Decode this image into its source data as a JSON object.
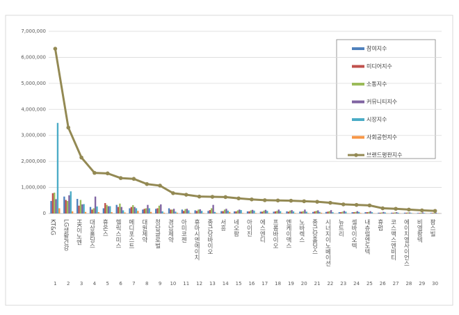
{
  "chart_data": {
    "type": "bar",
    "categories": [
      "KT&G",
      "LG생활건강",
      "HK이노엔",
      "대상홀딩스",
      "휴온스",
      "헬릭스미스",
      "메디포스트",
      "대원제약",
      "청담글로벌",
      "경남제약",
      "아미코젠",
      "휴마시엔에이치",
      "종근당바이오",
      "서흥",
      "네오팜",
      "아이진",
      "에스엔디",
      "프롬바이오",
      "엔케이맥스",
      "노바렉스",
      "종근당홀딩스",
      "시너지이노베이션",
      "뉴트리",
      "셀바이오텍",
      "내츄럴엔도텍",
      "휴럼",
      "코스맥스엔비티",
      "에이치엘사이언스",
      "비엘팜텍",
      "팜스빌"
    ],
    "ranks": [
      1,
      2,
      3,
      4,
      5,
      6,
      7,
      8,
      9,
      10,
      11,
      12,
      13,
      14,
      15,
      16,
      17,
      18,
      19,
      20,
      21,
      22,
      23,
      24,
      25,
      26,
      27,
      28,
      29,
      30
    ],
    "ylim": [
      0,
      7000000
    ],
    "yticks": [
      0,
      {
        "value": 1000000,
        "label": "1,000,000"
      },
      {
        "value": 2000000,
        "label": "2,000,000"
      },
      {
        "value": 3000000,
        "label": "3,000,000"
      },
      {
        "value": 4000000,
        "label": "4,000,000"
      },
      {
        "value": 5000000,
        "label": "5,000,000"
      },
      {
        "value": 6000000,
        "label": "6,000,000"
      },
      {
        "value": 7000000,
        "label": "7,000,000"
      }
    ],
    "grid": true,
    "legend": "upper right",
    "series": [
      {
        "name": "참여지수",
        "color": "#4f81bd",
        "type": "bar",
        "values": [
          480000,
          650000,
          560000,
          250000,
          200000,
          330000,
          200000,
          150000,
          180000,
          200000,
          150000,
          120000,
          100000,
          90000,
          80000,
          80000,
          70000,
          70000,
          80000,
          70000,
          60000,
          60000,
          50000,
          50000,
          50000,
          30000,
          30000,
          30000,
          20000,
          20000
        ]
      },
      {
        "name": "미디어지수",
        "color": "#c0504d",
        "type": "bar",
        "values": [
          780000,
          520000,
          300000,
          150000,
          400000,
          250000,
          250000,
          180000,
          200000,
          150000,
          100000,
          100000,
          130000,
          90000,
          80000,
          80000,
          70000,
          80000,
          70000,
          70000,
          80000,
          70000,
          50000,
          50000,
          50000,
          30000,
          30000,
          30000,
          20000,
          20000
        ]
      },
      {
        "name": "소통지수",
        "color": "#9bbb59",
        "type": "bar",
        "values": [
          800000,
          480000,
          520000,
          200000,
          330000,
          380000,
          320000,
          200000,
          300000,
          150000,
          170000,
          150000,
          200000,
          150000,
          120000,
          120000,
          110000,
          100000,
          110000,
          90000,
          100000,
          90000,
          70000,
          60000,
          60000,
          40000,
          40000,
          40000,
          30000,
          30000
        ]
      },
      {
        "name": "커뮤니티지수",
        "color": "#8064a2",
        "type": "bar",
        "values": [
          550000,
          700000,
          350000,
          650000,
          280000,
          250000,
          250000,
          330000,
          350000,
          180000,
          180000,
          160000,
          330000,
          180000,
          150000,
          140000,
          140000,
          150000,
          130000,
          150000,
          120000,
          130000,
          100000,
          90000,
          90000,
          60000,
          50000,
          40000,
          40000,
          30000
        ]
      },
      {
        "name": "시장지수",
        "color": "#4bacc6",
        "type": "bar",
        "values": [
          3480000,
          850000,
          360000,
          270000,
          280000,
          120000,
          200000,
          200000,
          80000,
          70000,
          120000,
          100000,
          60000,
          110000,
          130000,
          110000,
          100000,
          90000,
          80000,
          70000,
          60000,
          50000,
          70000,
          60000,
          50000,
          40000,
          30000,
          20000,
          20000,
          10000
        ]
      },
      {
        "name": "사회공헌지수",
        "color": "#f79646",
        "type": "bar",
        "values": [
          200000,
          80000,
          60000,
          50000,
          50000,
          40000,
          100000,
          60000,
          30000,
          30000,
          20000,
          20000,
          20000,
          60000,
          20000,
          20000,
          20000,
          20000,
          20000,
          20000,
          30000,
          10000,
          10000,
          20000,
          10000,
          10000,
          10000,
          10000,
          10000,
          10000
        ]
      },
      {
        "name": "브랜드평판지수",
        "color": "#938953",
        "type": "line",
        "values": [
          6330000,
          3300000,
          2150000,
          1560000,
          1540000,
          1360000,
          1330000,
          1130000,
          1070000,
          780000,
          720000,
          650000,
          640000,
          630000,
          580000,
          540000,
          510000,
          500000,
          490000,
          470000,
          450000,
          410000,
          350000,
          330000,
          310000,
          200000,
          180000,
          150000,
          120000,
          100000
        ]
      }
    ]
  }
}
